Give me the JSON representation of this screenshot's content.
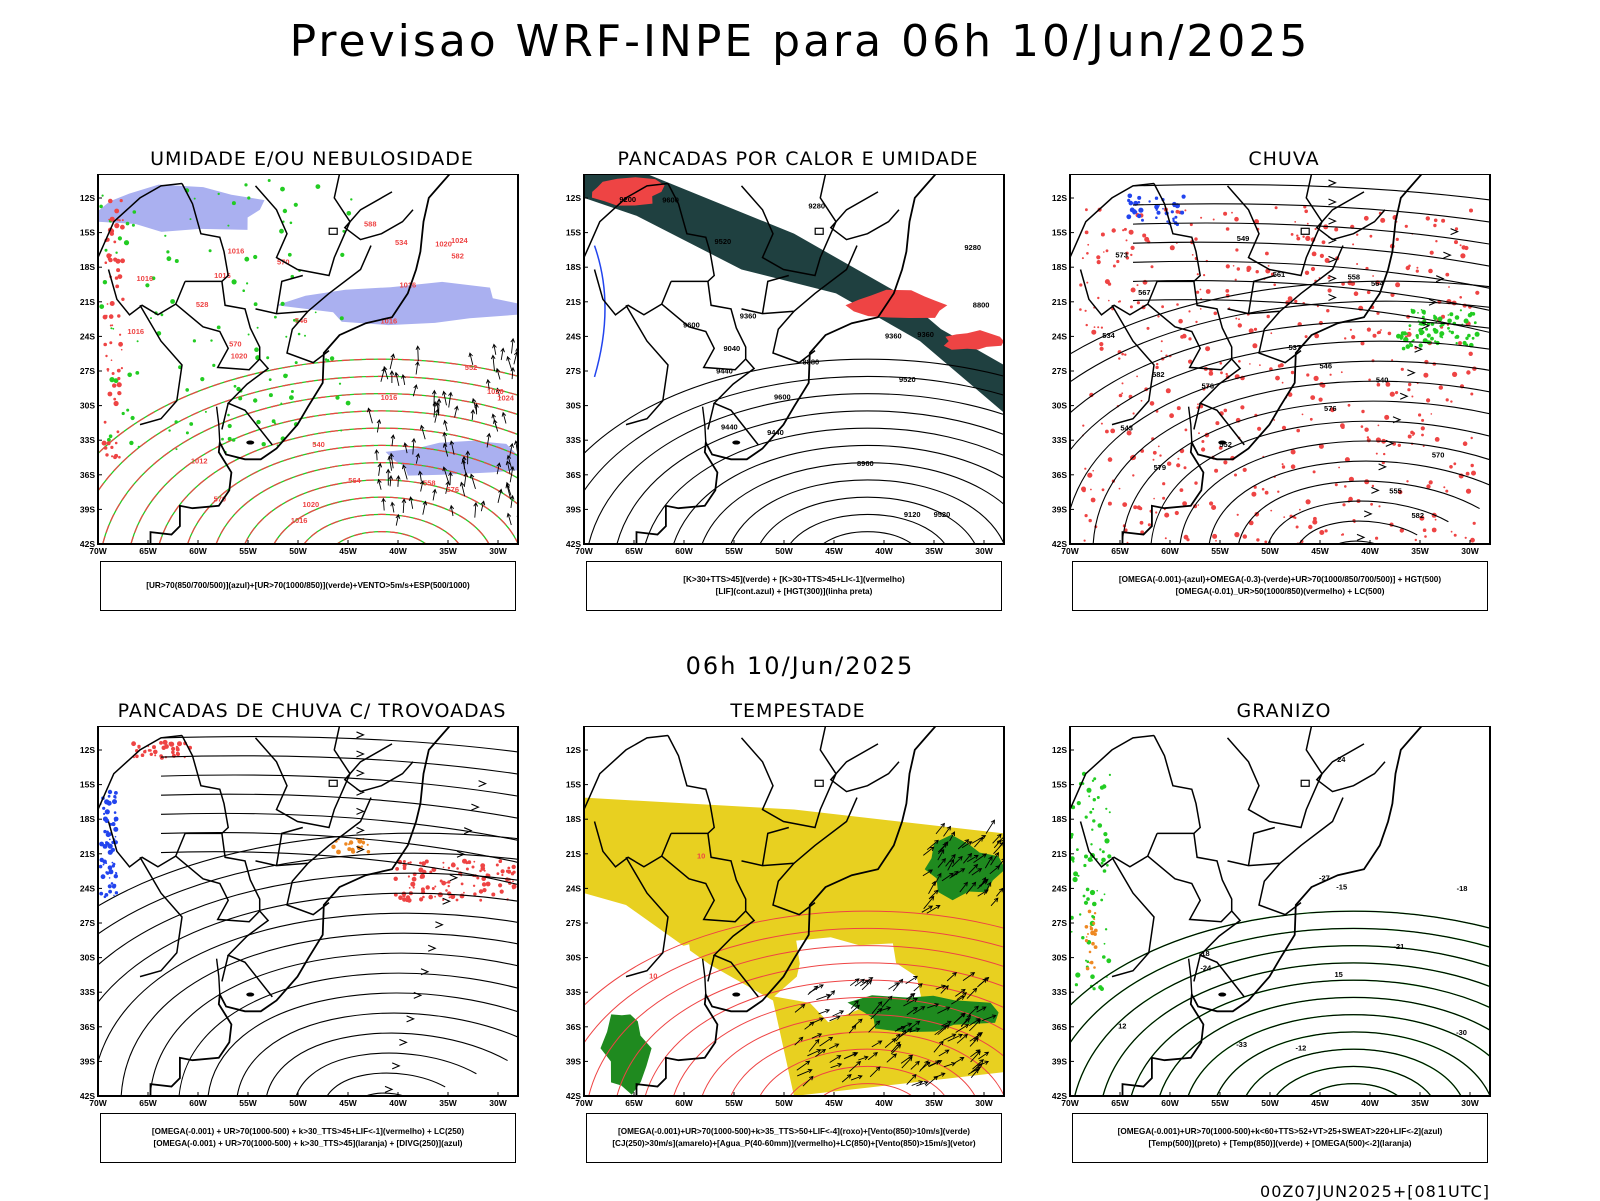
{
  "title": "Previsao WRF-INPE  para 06h 10/Jun/2025",
  "subtitle": "06h 10/Jun/2025",
  "footer": "00Z07JUN2025+[081UTC]",
  "axes": {
    "lat_labels": [
      "12S",
      "15S",
      "18S",
      "21S",
      "24S",
      "27S",
      "30S",
      "33S",
      "36S",
      "39S",
      "42S"
    ],
    "lon_labels": [
      "70W",
      "65W",
      "60W",
      "55W",
      "50W",
      "45W",
      "40W",
      "35W",
      "30W"
    ]
  },
  "colors": {
    "blue_fill": "#aab0f0",
    "green": "#22cc22",
    "red": "#ee4444",
    "dark_teal": "#1f4040",
    "blue_line": "#2244ee",
    "yellow": "#e8d020",
    "orange": "#ee8822",
    "dark_green": "#1f8a1f"
  },
  "panels": [
    {
      "title": "UMIDADE E/OU NEBULOSIDADE",
      "legend": [
        "[UR>70(850/700/500)](azul)+[UR>70(1000/850)](verde)+VENTO>5m/s+ESP(500/1000)"
      ],
      "labels": [
        "1016",
        "1016",
        "1016",
        "1020",
        "1020",
        "1016",
        "1016",
        "1020",
        "1024",
        "1024",
        "1020",
        "1016",
        "1016",
        "1012",
        "1016",
        "570",
        "570",
        "570",
        "576",
        "564",
        "558",
        "552",
        "546",
        "540",
        "534",
        "528",
        "582",
        "588"
      ]
    },
    {
      "title": "PANCADAS POR CALOR E UMIDADE",
      "legend": [
        "[K>30+TTS>45](verde) + [K>30+TTS>45+LI<-1](vermelho)",
        "[LIF](cont.azul) + [HGT(300)](linha preta)"
      ],
      "labels": [
        "9600",
        "9600",
        "9600",
        "9520",
        "9520",
        "9520",
        "9440",
        "9440",
        "9440",
        "9360",
        "9360",
        "9280",
        "9200",
        "9120",
        "9040",
        "8960",
        "8880",
        "8800",
        "9280",
        "9360"
      ]
    },
    {
      "title": "CHUVA",
      "legend": [
        "[OMEGA(-0.001)-(azul)+OMEGA(-0.3)-(verde)+UR>70(1000/850/700/500)] + HGT(500)",
        "[OMEGA(-0.01)_UR>50(1000/850)(vermelho) + LC(500)"
      ],
      "labels": [
        "582",
        "582",
        "576",
        "573",
        "570",
        "567",
        "579",
        "576",
        "564",
        "561",
        "558",
        "555",
        "552",
        "549",
        "546",
        "543",
        "540",
        "537",
        "534"
      ]
    },
    {
      "title": "PANCADAS DE CHUVA C/ TROVOADAS",
      "legend": [
        "[OMEGA(-0.001) + UR>70(1000-500) + k>30_TTS>45+LIF<-1](vermelho) + LC(250)",
        "[OMEGA(-0.001) + UR>70(1000-500) + k>30_TTS>45](laranja) + [DIVG(250)](azul)"
      ],
      "labels": []
    },
    {
      "title": "TEMPESTADE",
      "legend": [
        "[OMEGA(-0.001)+UR>70(1000-500)+k>35_TTS>50+LIF<-4](roxo)+[Vento(850)>10m/s](verde)",
        "[CJ(250)>30m/s](amarelo)+[Agua_P(40-60mm)](vermelho)+LC(850)+[Vento(850)>15m/s](vetor)"
      ],
      "labels": [
        "10",
        "10"
      ]
    },
    {
      "title": "GRANIZO",
      "legend": [
        "[OMEGA(-0.001)+UR>70(1000-500)+k<60+TTS>52+VT>25+SWEAT>220+LIF<-2](azul)",
        "[Temp(500)](preto) + [Temp(850)](verde) + [OMEGA(500)<-2](laranja)"
      ],
      "labels": [
        "15",
        "12",
        "-12",
        "-15",
        "-18",
        "-21",
        "-24",
        "-24",
        "-27",
        "-30",
        "-33",
        "-18"
      ]
    }
  ]
}
